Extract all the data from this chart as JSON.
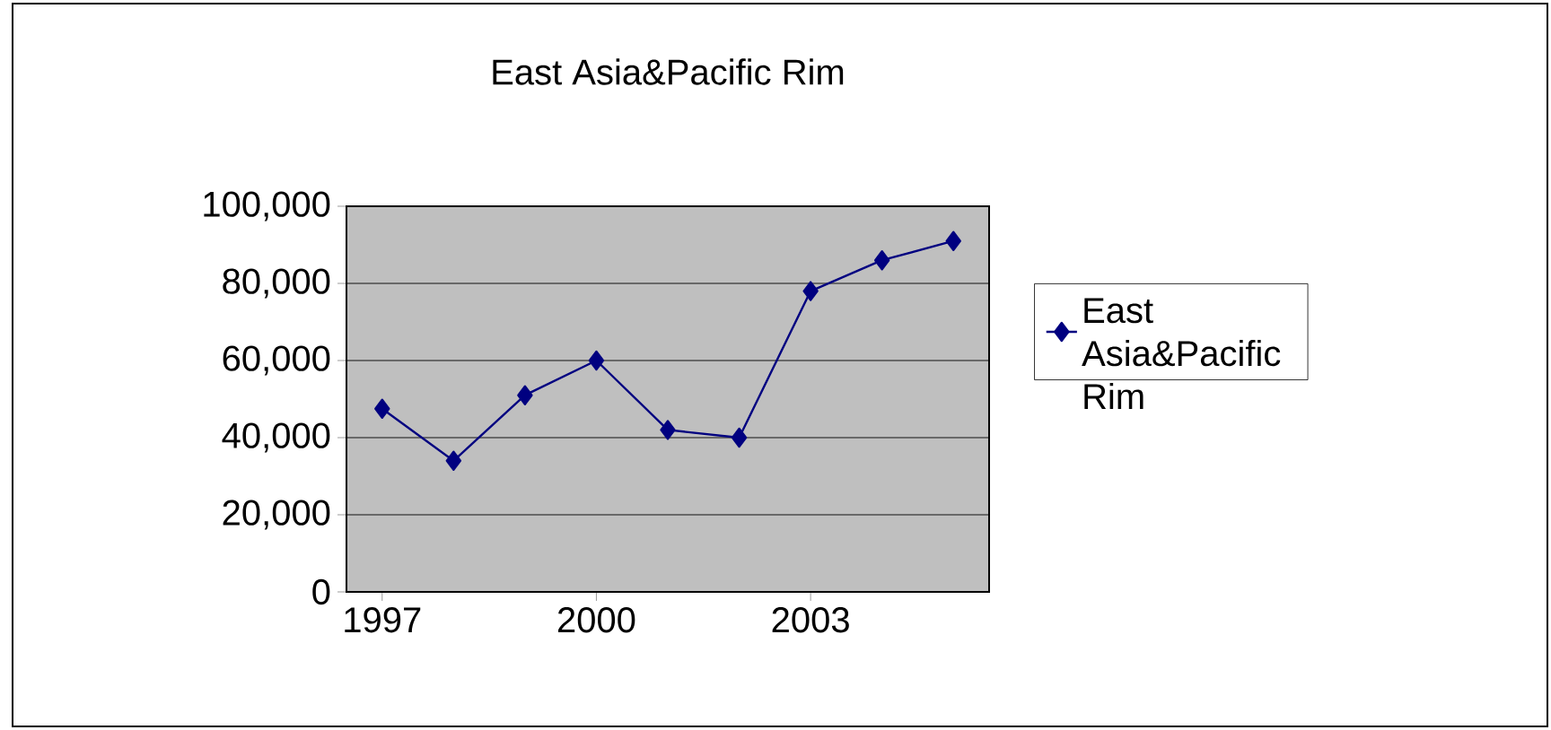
{
  "chart_data": {
    "type": "line",
    "title": "East Asia&Pacific Rim",
    "x": [
      1997,
      1998,
      1999,
      2000,
      2001,
      2002,
      2003,
      2004,
      2005
    ],
    "series": [
      {
        "name": "East Asia&Pacific Rim",
        "color": "#000080",
        "values": [
          47500,
          34000,
          51000,
          60000,
          42000,
          40000,
          78000,
          86000,
          91000
        ]
      }
    ],
    "xlim": [
      1996.5,
      2005.5
    ],
    "xticks": [
      1997,
      2000,
      2003
    ],
    "ylim": [
      0,
      100000
    ],
    "yticks": [
      {
        "value": 0,
        "label": "0"
      },
      {
        "value": 20000,
        "label": "20,000"
      },
      {
        "value": 40000,
        "label": "40,000"
      },
      {
        "value": 60000,
        "label": "60,000"
      },
      {
        "value": 80000,
        "label": "80,000"
      },
      {
        "value": 100000,
        "label": "100,000"
      }
    ],
    "grid": "y",
    "legend": "right",
    "marker": "diamond",
    "line_style": "solid"
  }
}
